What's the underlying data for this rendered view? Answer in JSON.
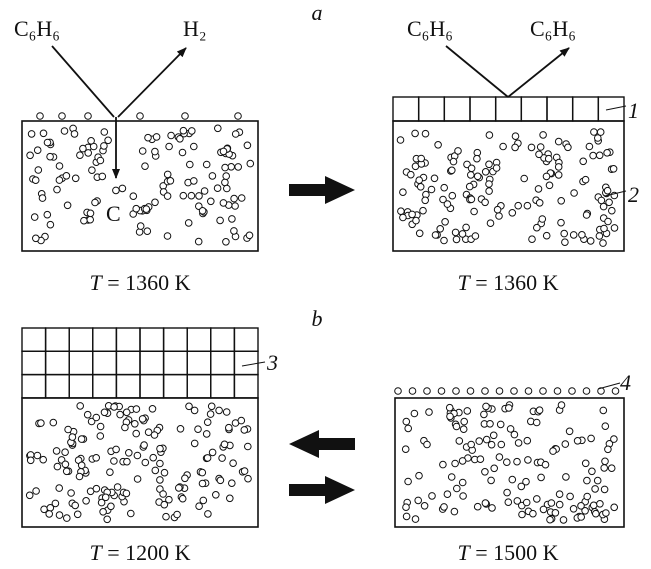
{
  "panel_a": {
    "label": "a",
    "left": {
      "reactant": "C₆H₆",
      "product": "H₂",
      "deposit": "C",
      "temperature": {
        "symbol": "T",
        "value": "= 1360 K"
      }
    },
    "right": {
      "reactant": "C₆H₆",
      "product": "C₆H₆",
      "layer_label": "1",
      "bulk_label": "2",
      "temperature": {
        "symbol": "T",
        "value": "= 1360 K"
      }
    }
  },
  "panel_b": {
    "label": "b",
    "left": {
      "layer_label": "3",
      "temperature": {
        "symbol": "T",
        "value": "= 1200 K"
      }
    },
    "right": {
      "layer_label": "4",
      "temperature": {
        "symbol": "T",
        "value": "= 1500 K"
      }
    }
  }
}
